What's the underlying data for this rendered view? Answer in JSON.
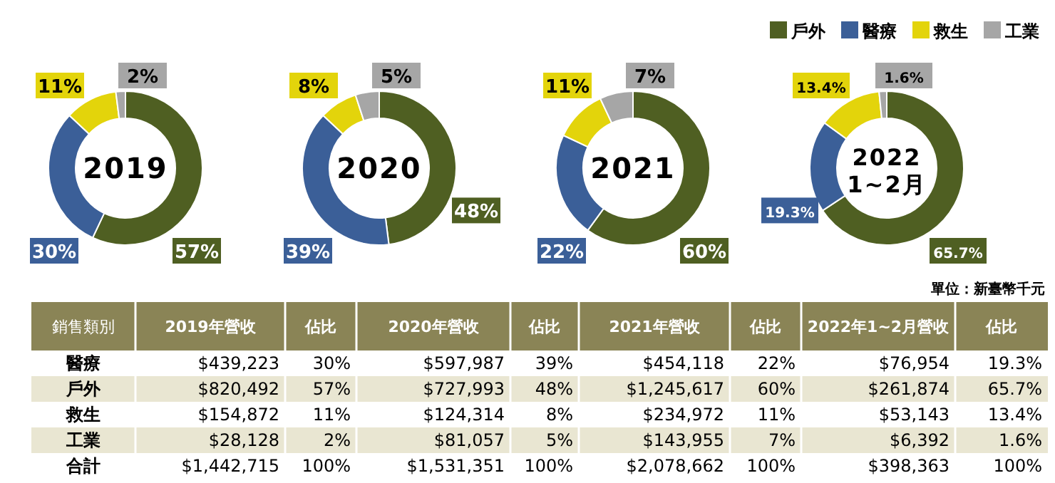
{
  "chart_data": [
    {
      "type": "donut",
      "title": "2019",
      "values": [
        57,
        30,
        11,
        2
      ],
      "value_labels": [
        "57%",
        "30%",
        "11%",
        "2%"
      ],
      "colors": [
        "#4f5f22",
        "#3b5f98",
        "#e3d40b",
        "#a6a6a6"
      ]
    },
    {
      "type": "donut",
      "title": "2020",
      "values": [
        48,
        39,
        8,
        5
      ],
      "value_labels": [
        "48%",
        "39%",
        "8%",
        "5%"
      ],
      "colors": [
        "#4f5f22",
        "#3b5f98",
        "#e3d40b",
        "#a6a6a6"
      ]
    },
    {
      "type": "donut",
      "title": "2021",
      "values": [
        60,
        22,
        11,
        7
      ],
      "value_labels": [
        "60%",
        "22%",
        "11%",
        "7%"
      ],
      "colors": [
        "#4f5f22",
        "#3b5f98",
        "#e3d40b",
        "#a6a6a6"
      ]
    },
    {
      "type": "donut",
      "title": "2022 1~2月",
      "categories": [
        "戶外",
        "醫療",
        "救生",
        "工業"
      ],
      "values": [
        65.7,
        19.3,
        13.4,
        1.6
      ],
      "value_labels": [
        "65.7%",
        "19.3%",
        "13.4%",
        "1.6%"
      ],
      "colors": [
        "#4f5f22",
        "#3b5f98",
        "#e3d40b",
        "#a6a6a6"
      ],
      "legend": "top right"
    },
    {
      "type": "other",
      "ylabel": "銷售類別",
      "categories": [
        "2019年營收",
        "佔比",
        "2020年營收",
        "佔比",
        "2021年營收",
        "佔比",
        "2022年1~2月營收",
        "佔比"
      ],
      "annotations": [
        "單位：新臺幣千元"
      ],
      "series": [
        {
          "name": "醫療",
          "values": [
            439223,
            30,
            597987,
            39,
            454118,
            22,
            76954,
            19.3
          ],
          "value_labels": [
            "$439,223",
            "30%",
            "$597,987",
            "39%",
            "$454,118",
            "22%",
            "$76,954",
            "19.3%"
          ]
        },
        {
          "name": "戶外",
          "values": [
            820492,
            57,
            727993,
            48,
            1245617,
            60,
            261874,
            65.7
          ],
          "value_labels": [
            "$820,492",
            "57%",
            "$727,993",
            "48%",
            "$1,245,617",
            "60%",
            "$261,874",
            "65.7%"
          ]
        },
        {
          "name": "救生",
          "values": [
            154872,
            11,
            124314,
            8,
            234972,
            11,
            53143,
            13.4
          ],
          "value_labels": [
            "$154,872",
            "11%",
            "$124,314",
            "8%",
            "$234,972",
            "11%",
            "$53,143",
            "13.4%"
          ]
        },
        {
          "name": "工業",
          "values": [
            28128,
            2,
            81057,
            5,
            143955,
            7,
            6392,
            1.6
          ],
          "value_labels": [
            "$28,128",
            "2%",
            "$81,057",
            "5%",
            "$143,955",
            "7%",
            "$6,392",
            "1.6%"
          ]
        },
        {
          "name": "合計",
          "values": [
            1442715,
            100,
            1531351,
            100,
            2078662,
            100,
            398363,
            100
          ],
          "value_labels": [
            "$1,442,715",
            "100%",
            "$1,531,351",
            "100%",
            "$2,078,662",
            "100%",
            "$398,363",
            "100%"
          ]
        }
      ]
    }
  ]
}
